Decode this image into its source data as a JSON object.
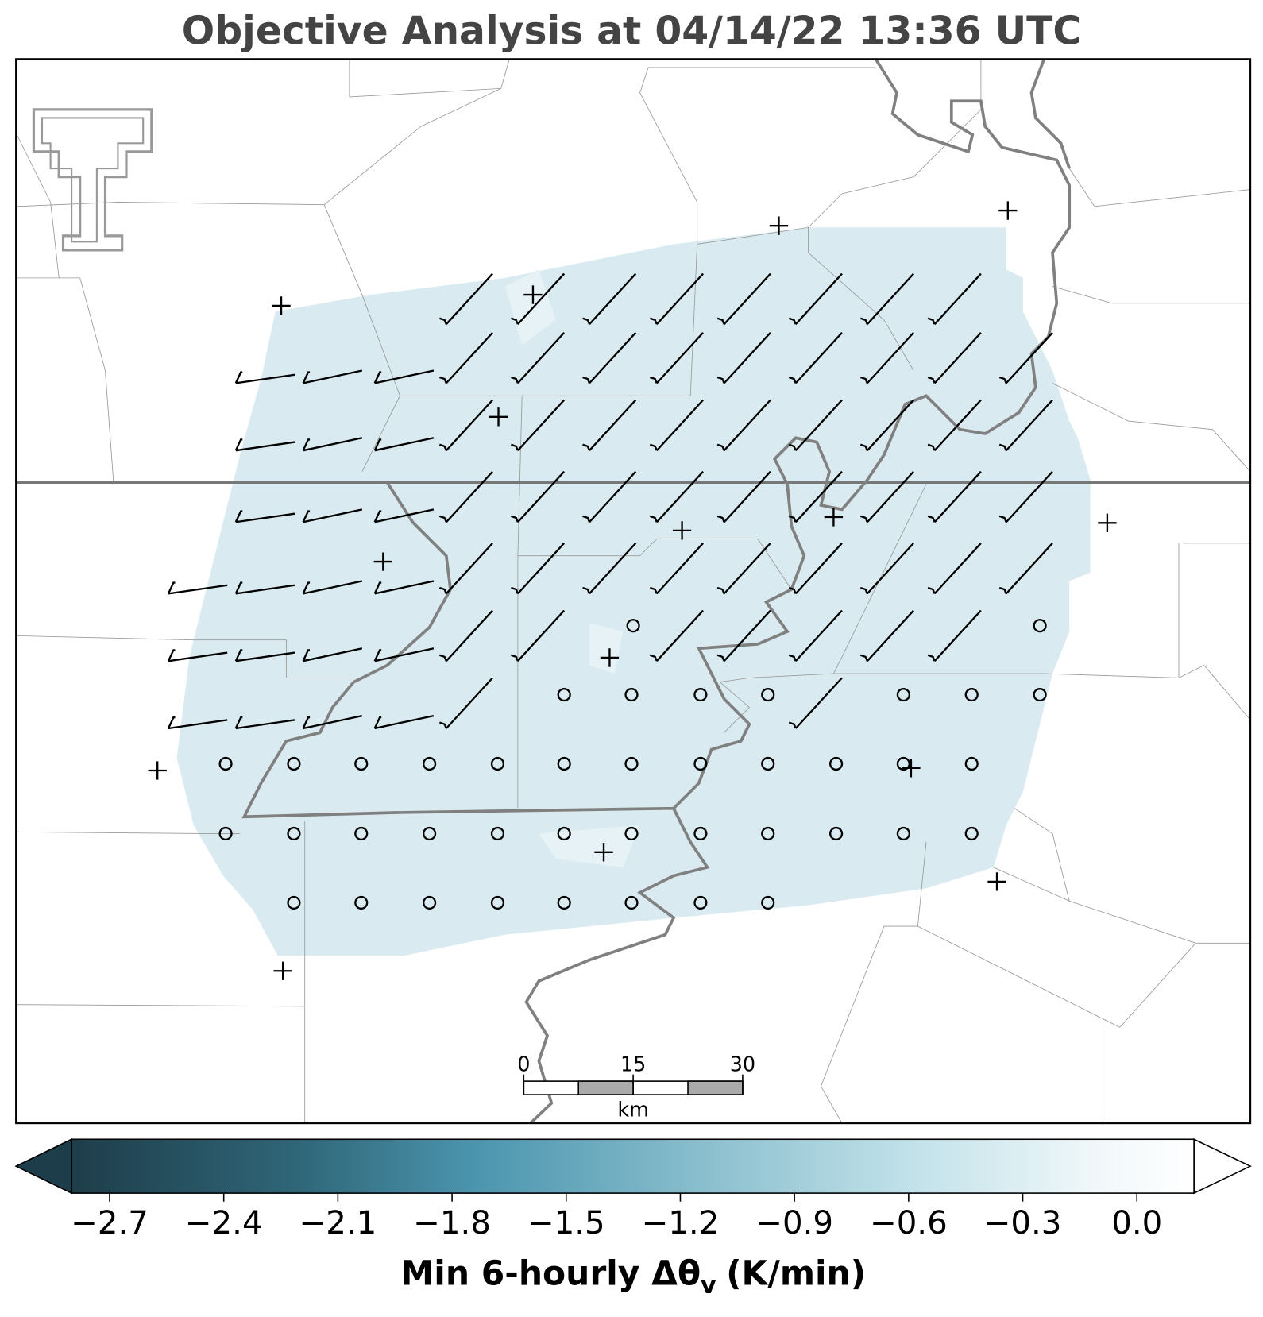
{
  "title": "Objective Analysis at 04/14/22 13:36 UTC",
  "colorbar": {
    "lim": [
      -2.8,
      0.15
    ],
    "ticks": [
      {
        "value": -2.7,
        "label": "−2.7"
      },
      {
        "value": -2.4,
        "label": "−2.4"
      },
      {
        "value": -2.1,
        "label": "−2.1"
      },
      {
        "value": -1.8,
        "label": "−1.8"
      },
      {
        "value": -1.5,
        "label": "−1.5"
      },
      {
        "value": -1.2,
        "label": "−1.2"
      },
      {
        "value": -0.9,
        "label": "−0.9"
      },
      {
        "value": -0.6,
        "label": "−0.6"
      },
      {
        "value": -0.3,
        "label": "−0.3"
      },
      {
        "value": 0.0,
        "label": "0.0"
      }
    ],
    "label_main": "Min 6-hourly Δθ",
    "label_sub": "v",
    "label_unit": "(K/min)"
  },
  "scale_bar": {
    "lim": [
      0,
      30
    ],
    "ticks": [
      0,
      15,
      30
    ],
    "unit": "km"
  }
}
